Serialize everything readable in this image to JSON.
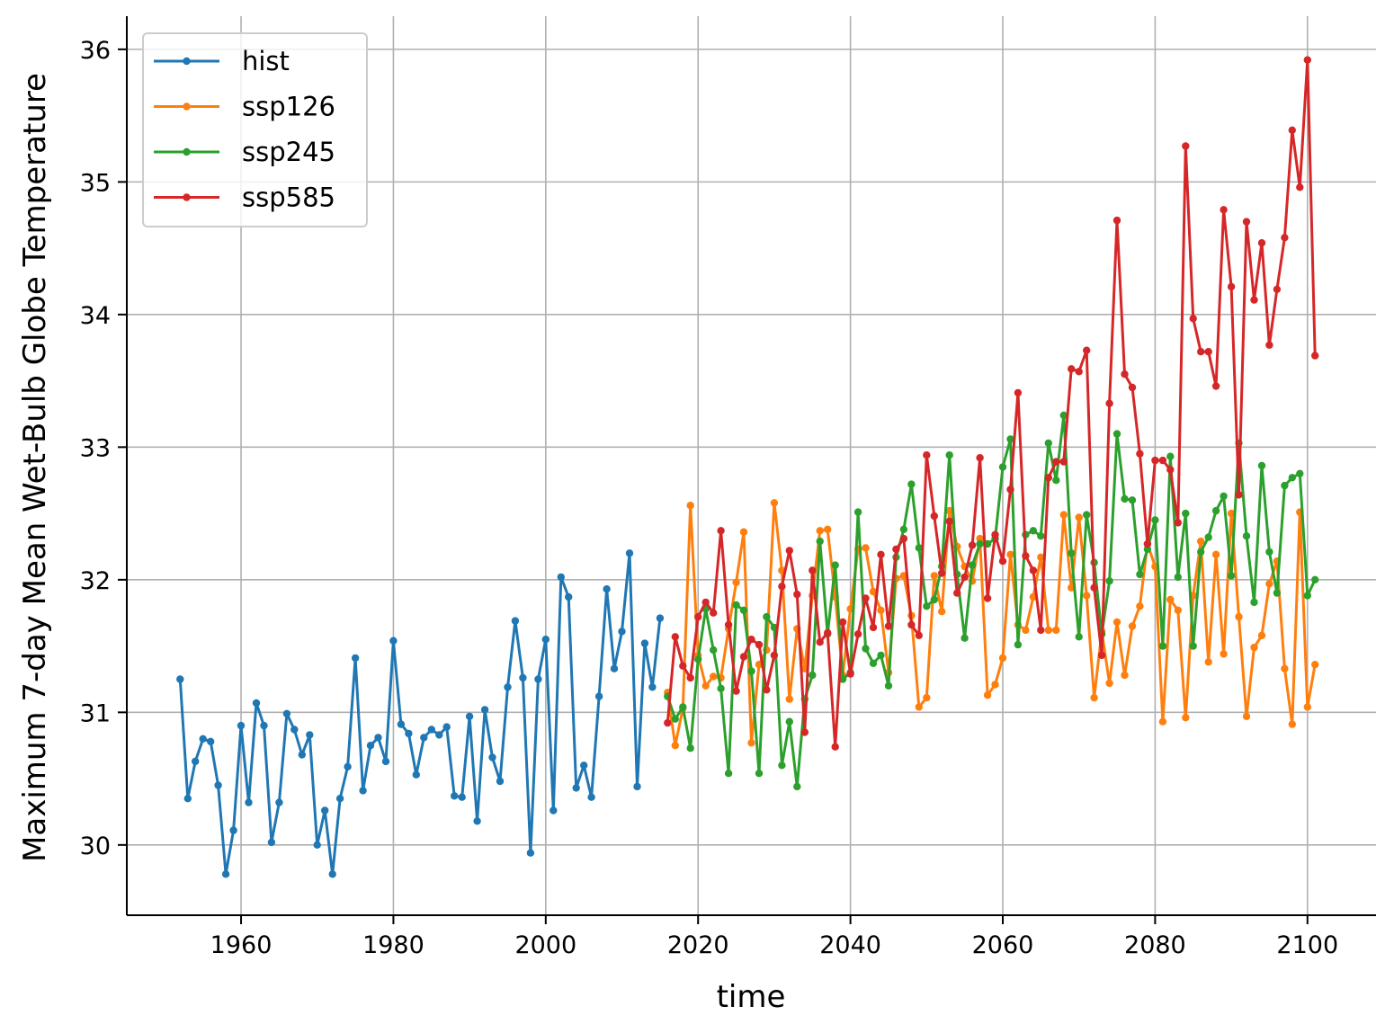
{
  "chart_data": {
    "type": "line",
    "title": "",
    "xlabel": "time",
    "ylabel": "Maximum 7-day Mean Wet-Bulb Globe Temperature",
    "xlim": [
      1945,
      2109
    ],
    "ylim": [
      29.47,
      36.25
    ],
    "xticks": [
      1960,
      1980,
      2000,
      2020,
      2040,
      2060,
      2080,
      2100
    ],
    "yticks": [
      30,
      31,
      32,
      33,
      34,
      35,
      36
    ],
    "grid": true,
    "legend_position": "top-left",
    "markers": true,
    "series": [
      {
        "name": "hist",
        "color": "#1f77b4",
        "x_start": 1952,
        "values": [
          31.25,
          30.35,
          30.63,
          30.8,
          30.78,
          30.45,
          29.78,
          30.11,
          30.9,
          30.32,
          31.07,
          30.9,
          30.02,
          30.32,
          30.99,
          30.87,
          30.68,
          30.83,
          30.0,
          30.26,
          29.78,
          30.35,
          30.59,
          31.41,
          30.41,
          30.75,
          30.81,
          30.63,
          31.54,
          30.91,
          30.84,
          30.53,
          30.81,
          30.87,
          30.83,
          30.89,
          30.37,
          30.36,
          30.97,
          30.18,
          31.02,
          30.66,
          30.48,
          31.19,
          31.69,
          31.26,
          29.94,
          31.25,
          31.55,
          30.26,
          32.02,
          31.87,
          30.43,
          30.6,
          30.36,
          31.12,
          31.93,
          31.33,
          31.61,
          32.2,
          30.44,
          31.52,
          31.19,
          31.71
        ]
      },
      {
        "name": "ssp126",
        "color": "#ff7f0e",
        "x_start": 2016,
        "values": [
          31.15,
          30.75,
          31.03,
          32.56,
          31.43,
          31.2,
          31.27,
          31.26,
          31.63,
          31.98,
          32.36,
          30.77,
          31.36,
          31.47,
          32.58,
          32.07,
          31.1,
          31.63,
          31.33,
          31.88,
          32.37,
          32.38,
          31.87,
          31.28,
          31.78,
          32.23,
          32.24,
          31.91,
          31.77,
          31.3,
          32.01,
          32.03,
          31.73,
          31.04,
          31.11,
          32.03,
          31.76,
          32.52,
          32.25,
          32.1,
          31.99,
          32.31,
          31.13,
          31.21,
          31.41,
          32.19,
          31.66,
          31.62,
          31.87,
          32.17,
          31.62,
          31.62,
          32.49,
          31.94,
          32.47,
          31.88,
          31.11,
          31.61,
          31.22,
          31.68,
          31.28,
          31.65,
          31.8,
          32.27,
          32.1,
          30.93,
          31.85,
          31.77,
          30.96,
          31.88,
          32.29,
          31.38,
          32.19,
          31.44,
          32.5,
          31.72,
          30.97,
          31.49,
          31.58,
          31.97,
          32.14,
          31.33,
          30.91,
          32.51,
          31.04,
          31.36
        ]
      },
      {
        "name": "ssp245",
        "color": "#2ca02c",
        "x_start": 2016,
        "values": [
          31.12,
          30.95,
          31.04,
          30.73,
          31.4,
          31.78,
          31.47,
          31.18,
          30.54,
          31.81,
          31.77,
          31.31,
          30.54,
          31.72,
          31.64,
          30.6,
          30.93,
          30.44,
          31.1,
          31.28,
          32.29,
          31.59,
          32.11,
          31.25,
          31.3,
          32.51,
          31.48,
          31.37,
          31.43,
          31.2,
          32.17,
          32.38,
          32.72,
          32.24,
          31.8,
          31.85,
          32.1,
          32.94,
          32.04,
          31.56,
          32.11,
          32.27,
          32.27,
          32.31,
          32.85,
          33.06,
          31.51,
          32.34,
          32.37,
          32.33,
          33.03,
          32.75,
          33.24,
          32.2,
          31.57,
          32.49,
          32.13,
          31.59,
          31.99,
          33.1,
          32.61,
          32.6,
          32.04,
          32.23,
          32.45,
          31.5,
          32.93,
          32.02,
          32.5,
          31.5,
          32.21,
          32.32,
          32.52,
          32.63,
          32.03,
          33.03,
          32.33,
          31.83,
          32.86,
          32.21,
          31.9,
          32.71,
          32.77,
          32.8,
          31.88,
          32.0
        ]
      },
      {
        "name": "ssp585",
        "color": "#d62728",
        "x_start": 2016,
        "values": [
          30.92,
          31.57,
          31.35,
          31.26,
          31.72,
          31.83,
          31.75,
          32.37,
          31.66,
          31.16,
          31.42,
          31.55,
          31.51,
          31.17,
          31.43,
          31.95,
          32.22,
          31.89,
          30.85,
          32.07,
          31.53,
          31.6,
          30.74,
          31.68,
          31.29,
          31.59,
          31.86,
          31.64,
          32.19,
          31.65,
          32.23,
          32.31,
          31.66,
          31.58,
          32.94,
          32.48,
          32.05,
          32.44,
          31.9,
          32.02,
          32.26,
          32.92,
          31.86,
          32.34,
          32.14,
          32.68,
          33.41,
          32.18,
          32.07,
          31.62,
          32.77,
          32.89,
          32.89,
          33.59,
          33.57,
          33.73,
          31.94,
          31.43,
          33.33,
          34.71,
          33.55,
          33.45,
          32.95,
          32.27,
          32.9,
          32.9,
          32.83,
          32.43,
          35.27,
          33.97,
          33.72,
          33.72,
          33.46,
          34.79,
          34.21,
          32.64,
          34.7,
          34.11,
          34.54,
          33.77,
          34.19,
          34.58,
          35.39,
          34.96,
          35.92,
          33.69
        ]
      }
    ]
  }
}
